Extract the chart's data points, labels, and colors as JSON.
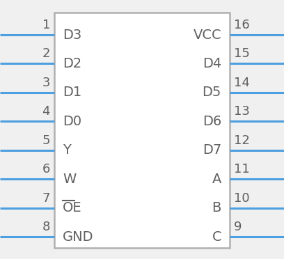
{
  "bg_color": "#f0f0f0",
  "box_color": "#b0b0b0",
  "box_facecolor": "#ffffff",
  "pin_color": "#4d9fe0",
  "text_color": "#606060",
  "num_color": "#606060",
  "left_pins": [
    {
      "num": "1",
      "label": "D3",
      "overline": false
    },
    {
      "num": "2",
      "label": "D2",
      "overline": false
    },
    {
      "num": "3",
      "label": "D1",
      "overline": false
    },
    {
      "num": "4",
      "label": "D0",
      "overline": false
    },
    {
      "num": "5",
      "label": "Y",
      "overline": false
    },
    {
      "num": "6",
      "label": "W",
      "overline": false
    },
    {
      "num": "7",
      "label": "OE",
      "overline": true
    },
    {
      "num": "8",
      "label": "GND",
      "overline": false
    }
  ],
  "right_pins": [
    {
      "num": "16",
      "label": "VCC"
    },
    {
      "num": "15",
      "label": "D4"
    },
    {
      "num": "14",
      "label": "D5"
    },
    {
      "num": "13",
      "label": "D6"
    },
    {
      "num": "12",
      "label": "D7"
    },
    {
      "num": "11",
      "label": "A"
    },
    {
      "num": "10",
      "label": "B"
    },
    {
      "num": "9",
      "label": "C"
    }
  ],
  "n_rows": 8,
  "label_fontsize": 14,
  "num_fontsize": 13,
  "pin_lw": 2.2
}
